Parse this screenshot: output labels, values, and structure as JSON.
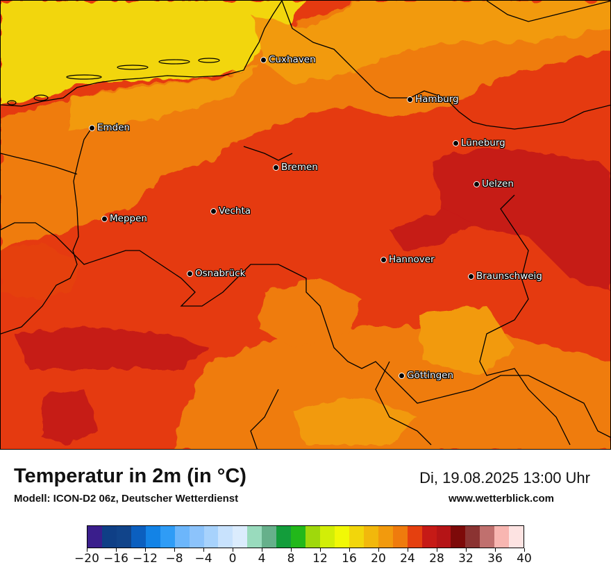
{
  "map": {
    "cities": [
      {
        "name": "Cuxhaven"
      },
      {
        "name": "Hamburg"
      },
      {
        "name": "Emden"
      },
      {
        "name": "Lüneburg"
      },
      {
        "name": "Bremen"
      },
      {
        "name": "Uelzen"
      },
      {
        "name": "Vechta"
      },
      {
        "name": "Meppen"
      },
      {
        "name": "Hannover"
      },
      {
        "name": "Osnabrück"
      },
      {
        "name": "Braunschweig"
      },
      {
        "name": "Göttingen"
      }
    ]
  },
  "legend": {
    "title": "Temperatur in 2m (in °C)",
    "model": "Modell: ICON-D2 06z, Deutscher Wetterdienst",
    "datetime": "Di, 19.08.2025 13:00 Uhr",
    "website": "www.wetterblick.com",
    "colors": [
      "#3a1e8c",
      "#0f3f86",
      "#11448a",
      "#0b5fbf",
      "#1383e6",
      "#2f9cf6",
      "#6cb6fb",
      "#8cc3fb",
      "#a7d2fc",
      "#c8e2fd",
      "#dbecfd",
      "#99dbbd",
      "#66b08b",
      "#139d3b",
      "#22b81a",
      "#9fd80c",
      "#d2ee07",
      "#f1f806",
      "#f2d60b",
      "#f2b80c",
      "#f29a0d",
      "#ef7b0d",
      "#e5400f",
      "#c61a16",
      "#b51416",
      "#7d0a09",
      "#8b3332",
      "#c0706e",
      "#f8b6b1",
      "#fde3e2"
    ],
    "tick_labels": [
      "−20",
      "−16",
      "−12",
      "−8",
      "−4",
      "0",
      "4",
      "8",
      "12",
      "16",
      "20",
      "24",
      "28",
      "32",
      "36",
      "40"
    ]
  }
}
